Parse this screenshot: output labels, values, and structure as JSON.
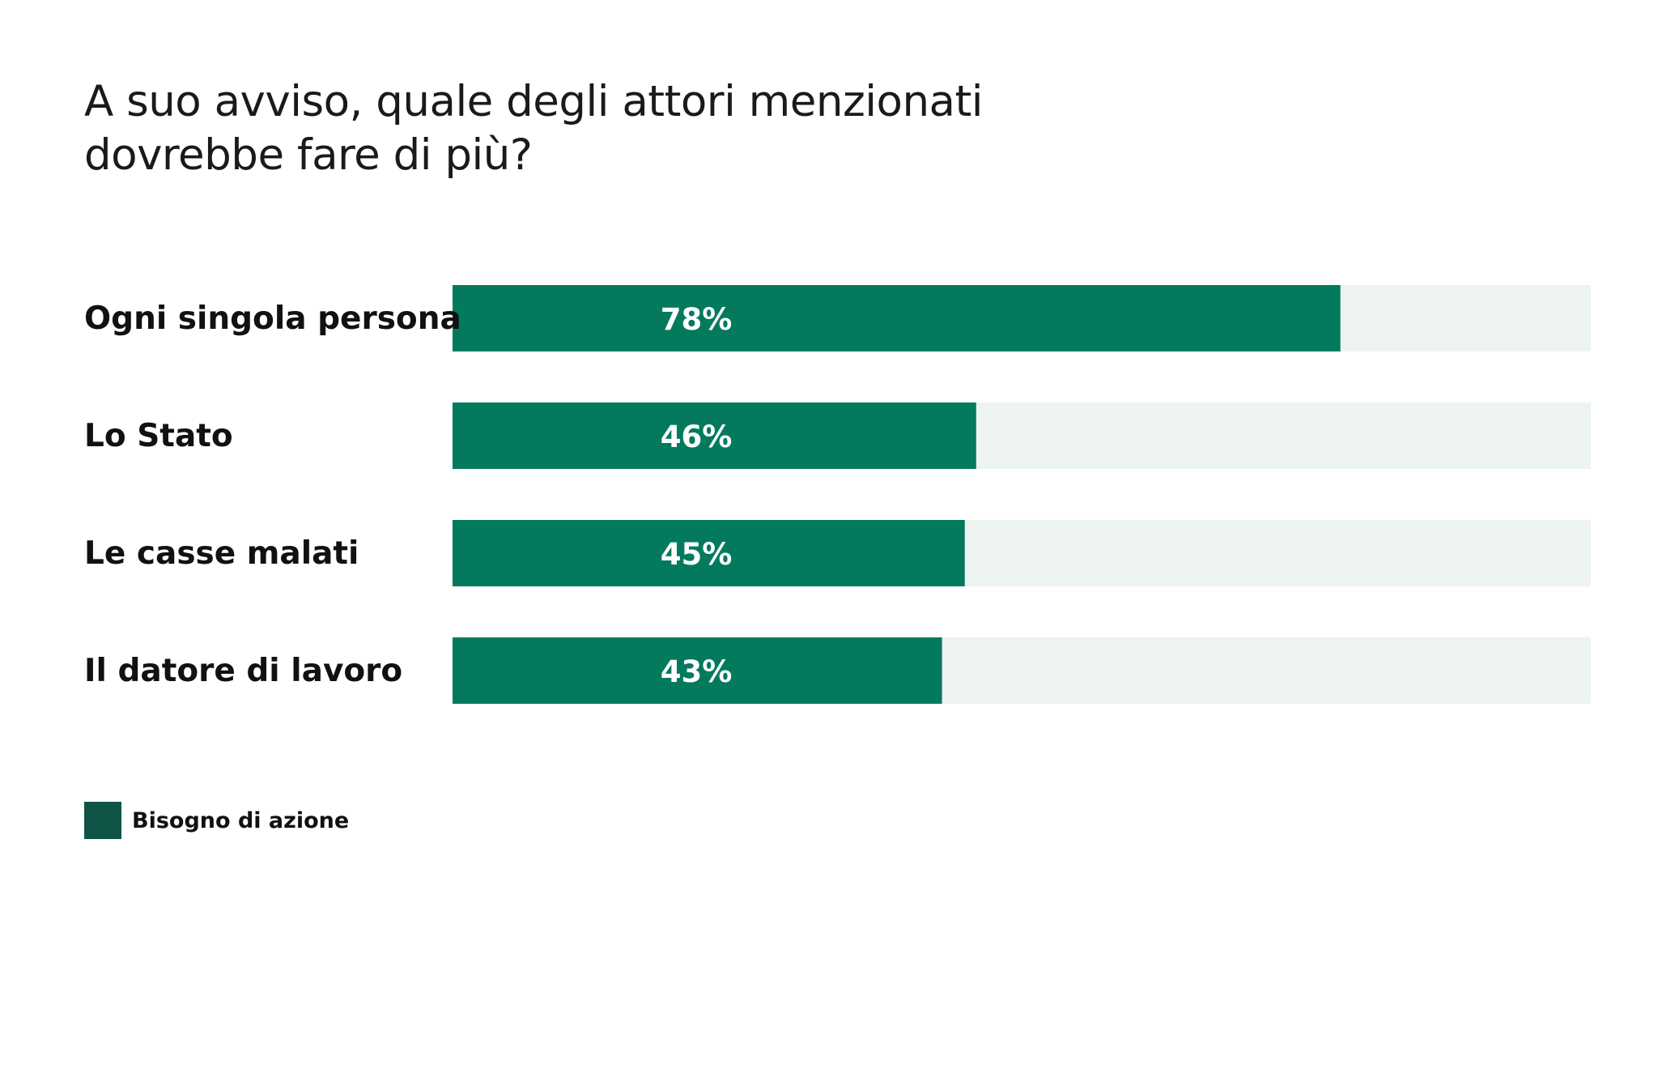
{
  "chart_data": {
    "type": "bar",
    "orientation": "horizontal",
    "title_lines": [
      "A suo avviso, quale degli attori menzionati",
      "dovrebbe fare di più?"
    ],
    "categories": [
      "Ogni singola persona",
      "Lo Stato",
      "Le casse malati",
      "Il datore di lavoro"
    ],
    "series": [
      {
        "name": "Bisogno di azione",
        "values": [
          78,
          46,
          45,
          43
        ],
        "value_labels": [
          "78%",
          "46%",
          "45%",
          "43%"
        ]
      }
    ],
    "xlim": [
      0,
      100
    ],
    "unit": "%",
    "grid": false,
    "legend_position": "bottom-left"
  },
  "colors": {
    "bar_fill": "#037A5E",
    "bar_track": "#EDF3F0",
    "legend_swatch": "#0F5446",
    "value_text": "#FFFFFF",
    "label_text": "#111111"
  },
  "legend": {
    "label": "Bisogno di azione"
  }
}
